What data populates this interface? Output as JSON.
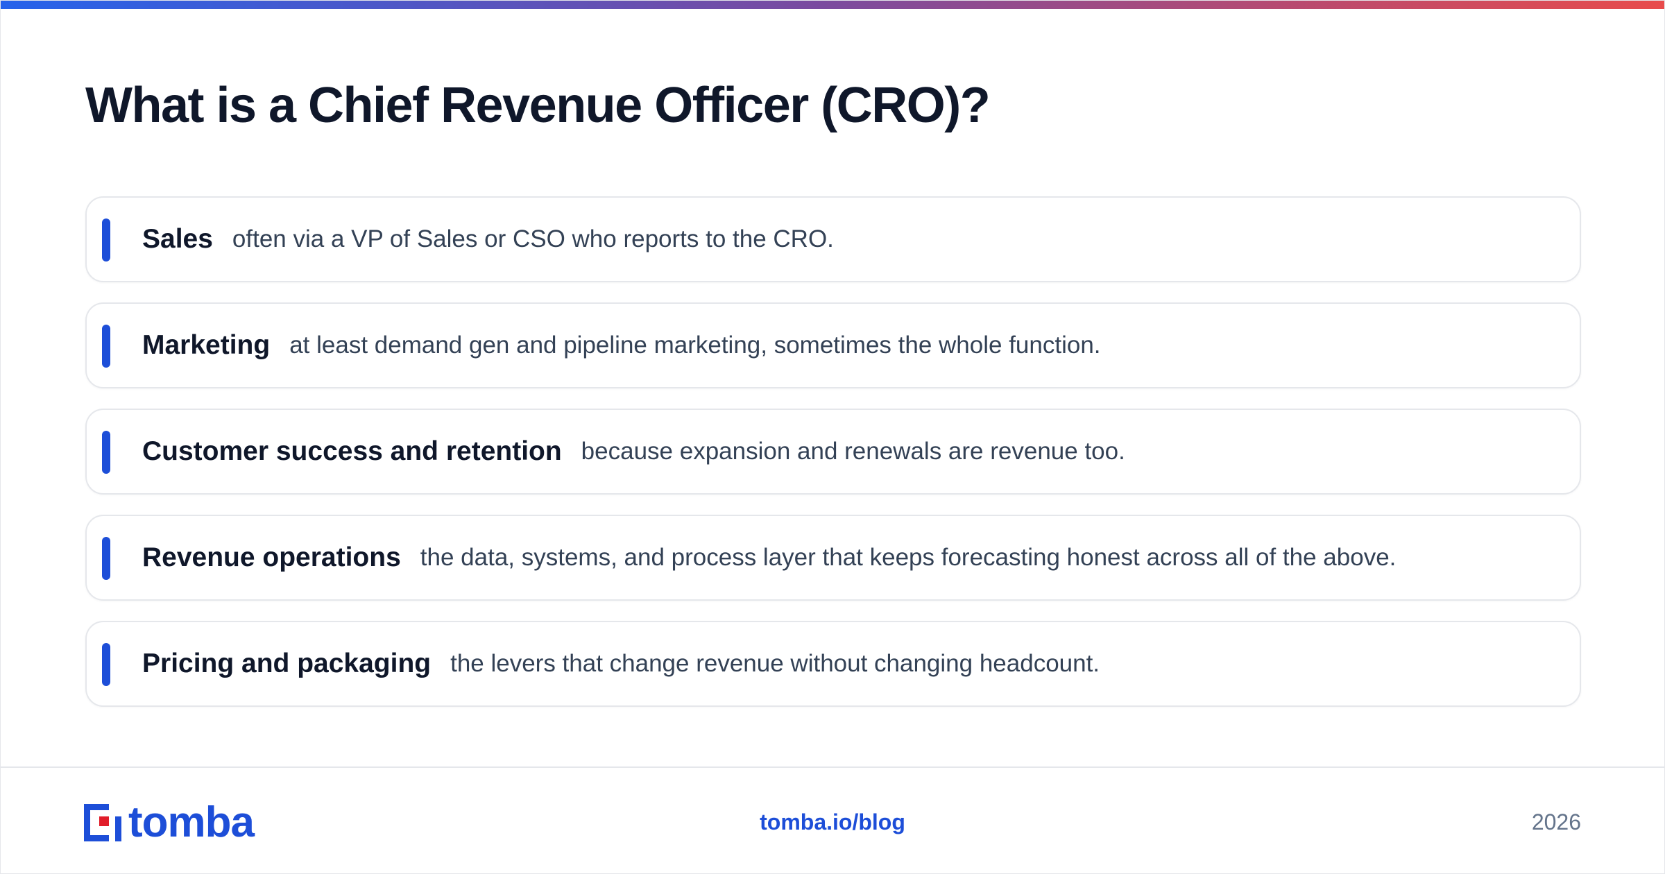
{
  "colors": {
    "accent": "#1d4ed8",
    "brand": "#1d4ed8",
    "brand_red": "#e11d2a",
    "gradient_start": "#2563eb",
    "gradient_mid": "#7c4a9e",
    "gradient_end": "#e84b4b"
  },
  "header": {
    "title": "What is a Chief Revenue Officer (CRO)?"
  },
  "items": [
    {
      "label": "Sales",
      "description": "often via a VP of Sales or CSO who reports to the CRO."
    },
    {
      "label": "Marketing",
      "description": "at least demand gen and pipeline marketing, sometimes the whole function."
    },
    {
      "label": "Customer success and retention",
      "description": "because expansion and renewals are revenue too."
    },
    {
      "label": "Revenue operations",
      "description": "the data, systems, and process layer that keeps forecasting honest across all of the above."
    },
    {
      "label": "Pricing and packaging",
      "description": "the levers that change revenue without changing headcount."
    }
  ],
  "footer": {
    "logo_icon": "tomba-logo-icon",
    "logo_text": "tomba",
    "link": "tomba.io/blog",
    "year": "2026"
  }
}
